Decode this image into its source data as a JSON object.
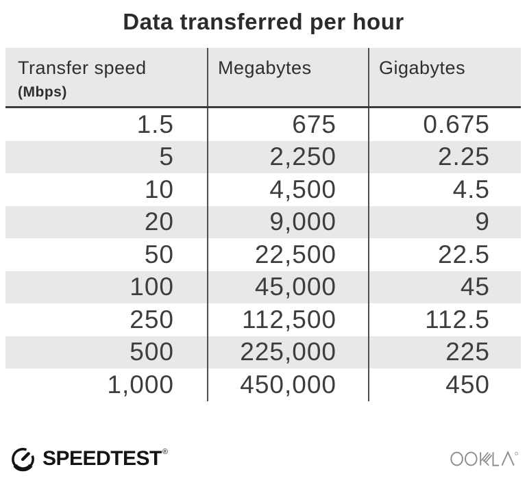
{
  "title": "Data transferred per hour",
  "table": {
    "columns": [
      {
        "label": "Transfer speed",
        "sublabel": "(Mbps)"
      },
      {
        "label": "Megabytes",
        "sublabel": ""
      },
      {
        "label": "Gigabytes",
        "sublabel": ""
      }
    ],
    "rows": [
      [
        "1.5",
        "675",
        "0.675"
      ],
      [
        "5",
        "2,250",
        "2.25"
      ],
      [
        "10",
        "4,500",
        "4.5"
      ],
      [
        "20",
        "9,000",
        "9"
      ],
      [
        "50",
        "22,500",
        "22.5"
      ],
      [
        "100",
        "45,000",
        "45"
      ],
      [
        "250",
        "112,500",
        "112.5"
      ],
      [
        "500",
        "225,000",
        "225"
      ],
      [
        "1,000",
        "450,000",
        "450"
      ]
    ]
  },
  "footer": {
    "speedtest_label": "SPEEDTEST",
    "speedtest_trademark": "®",
    "ookla_label": "OOKLA",
    "ookla_trademark": "®",
    "icons": {
      "speedtest_gauge": "gauge-icon",
      "ookla_wordmark": "ookla-wordmark-icon"
    }
  },
  "colors": {
    "header_bg": "#e8e8ea",
    "stripe_bg": "#e8e8ea",
    "divider": "#4d4d4d",
    "header_rule": "#3a3a3a",
    "title_text": "#2b2b2b",
    "header_text": "#2e2e2e",
    "cell_text": "#3d3d3d",
    "logo_black": "#141414",
    "ookla_gray": "#8b8b8b"
  },
  "chart_data": {
    "type": "table",
    "title": "Data transferred per hour",
    "columns": [
      "Transfer speed (Mbps)",
      "Megabytes",
      "Gigabytes"
    ],
    "rows": [
      [
        1.5,
        675,
        0.675
      ],
      [
        5,
        2250,
        2.25
      ],
      [
        10,
        4500,
        4.5
      ],
      [
        20,
        9000,
        9
      ],
      [
        50,
        22500,
        22.5
      ],
      [
        100,
        45000,
        45
      ],
      [
        250,
        112500,
        112.5
      ],
      [
        500,
        225000,
        225
      ],
      [
        1000,
        450000,
        450
      ]
    ],
    "layout": {
      "zebra_striping": true,
      "numbers_right_aligned": true
    }
  }
}
